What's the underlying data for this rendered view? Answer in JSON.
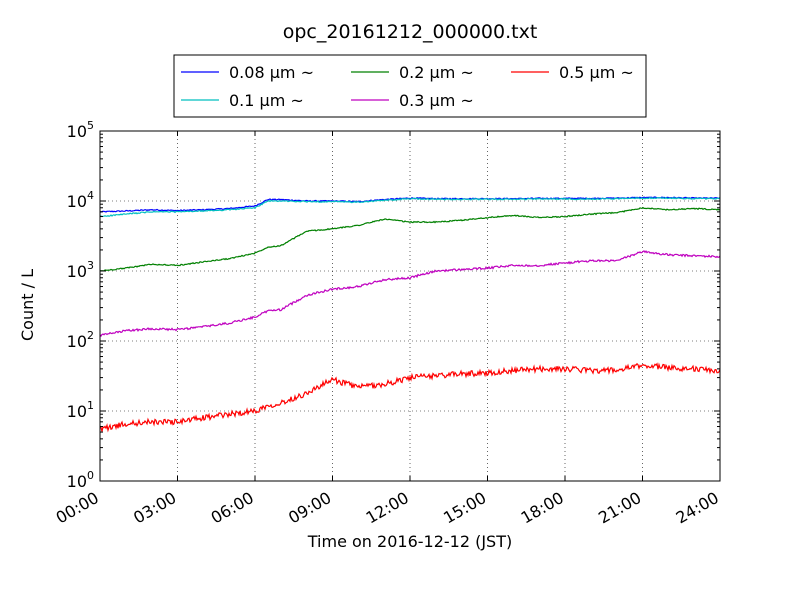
{
  "chart_data": {
    "type": "line",
    "title": "opc_20161212_000000.txt",
    "xlabel": "Time on 2016-12-12 (JST)",
    "ylabel": "Count / L",
    "y_scale": "log",
    "xlim": [
      "00:00",
      "24:00"
    ],
    "ylim": [
      1,
      100000
    ],
    "grid": true,
    "legend_position": "top-center",
    "x_ticks": [
      "00:00",
      "03:00",
      "06:00",
      "09:00",
      "12:00",
      "15:00",
      "18:00",
      "21:00",
      "24:00"
    ],
    "y_ticks": [
      {
        "base": "10",
        "exp": "0"
      },
      {
        "base": "10",
        "exp": "1"
      },
      {
        "base": "10",
        "exp": "2"
      },
      {
        "base": "10",
        "exp": "3"
      },
      {
        "base": "10",
        "exp": "4"
      },
      {
        "base": "10",
        "exp": "5"
      }
    ],
    "x": [
      "00:00",
      "01:00",
      "02:00",
      "03:00",
      "04:00",
      "05:00",
      "06:00",
      "06:30",
      "07:00",
      "08:00",
      "09:00",
      "10:00",
      "11:00",
      "12:00",
      "13:00",
      "14:00",
      "15:00",
      "16:00",
      "17:00",
      "18:00",
      "19:00",
      "20:00",
      "21:00",
      "22:00",
      "23:00",
      "24:00"
    ],
    "series": [
      {
        "name": "0.08 μm ~",
        "color": "#0000ff",
        "values": [
          7000,
          7200,
          7500,
          7300,
          7500,
          7800,
          8500,
          10500,
          10500,
          10000,
          10000,
          9800,
          10500,
          11000,
          10800,
          10800,
          10800,
          10800,
          10900,
          10900,
          10900,
          11000,
          11200,
          11200,
          11000,
          11000
        ]
      },
      {
        "name": "0.1 μm ~",
        "color": "#00bfbf",
        "values": [
          6000,
          6500,
          7000,
          7000,
          7200,
          7500,
          8000,
          10000,
          10000,
          9800,
          9800,
          9600,
          10200,
          10800,
          10600,
          10600,
          10600,
          10600,
          10700,
          10700,
          10700,
          10800,
          11000,
          11000,
          10800,
          10800
        ]
      },
      {
        "name": "0.2 μm ~",
        "color": "#008000",
        "values": [
          1000,
          1100,
          1250,
          1200,
          1350,
          1500,
          1800,
          2200,
          2300,
          3700,
          4000,
          4500,
          5500,
          5000,
          5000,
          5300,
          5800,
          6200,
          5800,
          6000,
          6500,
          6800,
          8000,
          7500,
          7800,
          7500
        ]
      },
      {
        "name": "0.3 μm ~",
        "color": "#bf00bf",
        "values": [
          120,
          140,
          150,
          145,
          160,
          180,
          220,
          270,
          280,
          450,
          550,
          600,
          750,
          800,
          1000,
          1050,
          1100,
          1200,
          1200,
          1300,
          1400,
          1400,
          1900,
          1700,
          1650,
          1600
        ]
      },
      {
        "name": "0.5 μm ~",
        "color": "#ff0000",
        "values": [
          5.5,
          6.5,
          7,
          7,
          8,
          9,
          10,
          12,
          13,
          18,
          28,
          22,
          24,
          30,
          32,
          34,
          35,
          38,
          40,
          40,
          38,
          38,
          45,
          42,
          40,
          37
        ]
      }
    ]
  }
}
